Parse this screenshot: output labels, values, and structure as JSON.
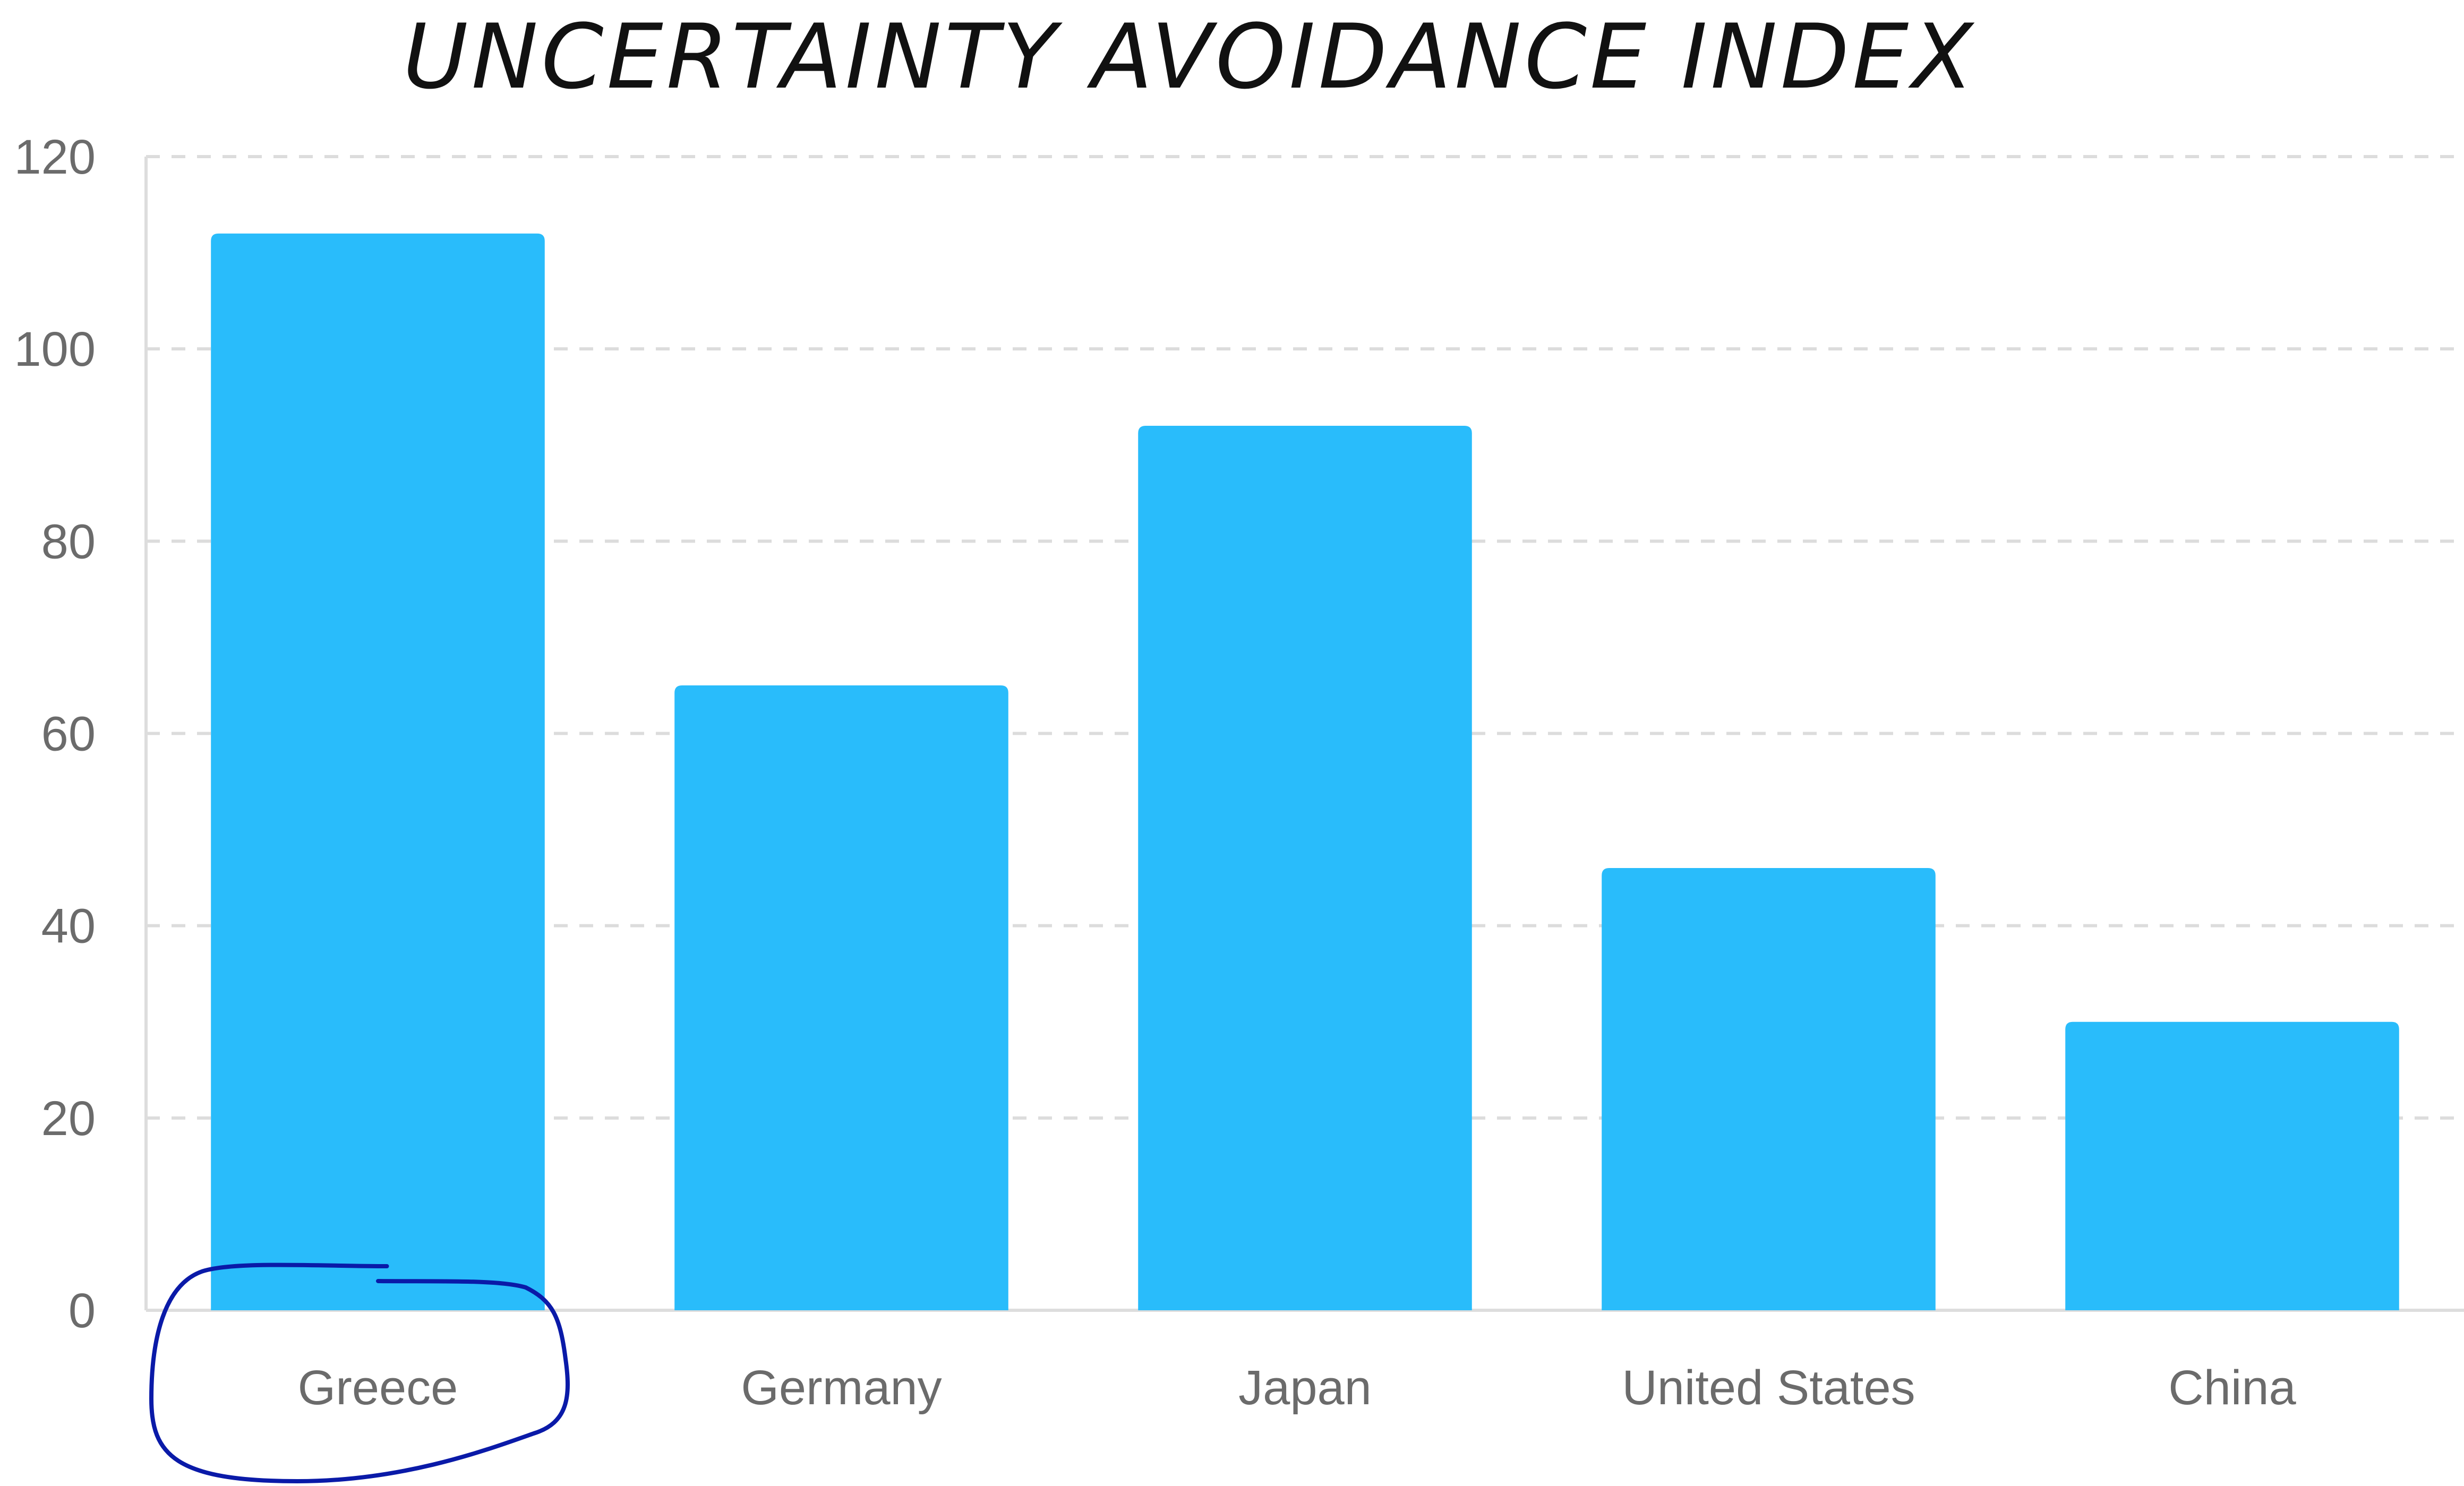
{
  "chart_data": {
    "type": "bar",
    "title": "UNCERTAINTY AVOIDANCE INDEX",
    "categories": [
      "Greece",
      "Germany",
      "Japan",
      "United States",
      "China"
    ],
    "values": [
      112,
      65,
      92,
      46,
      30
    ],
    "yticks": [
      "0",
      "20",
      "40",
      "60",
      "80",
      "100",
      "120"
    ],
    "ylim": [
      0,
      120
    ],
    "grid": true,
    "bar_color": "#29bcfb",
    "annotation": {
      "kind": "hand-drawn circle",
      "target": "Greece",
      "color": "#0a1aa8"
    }
  }
}
